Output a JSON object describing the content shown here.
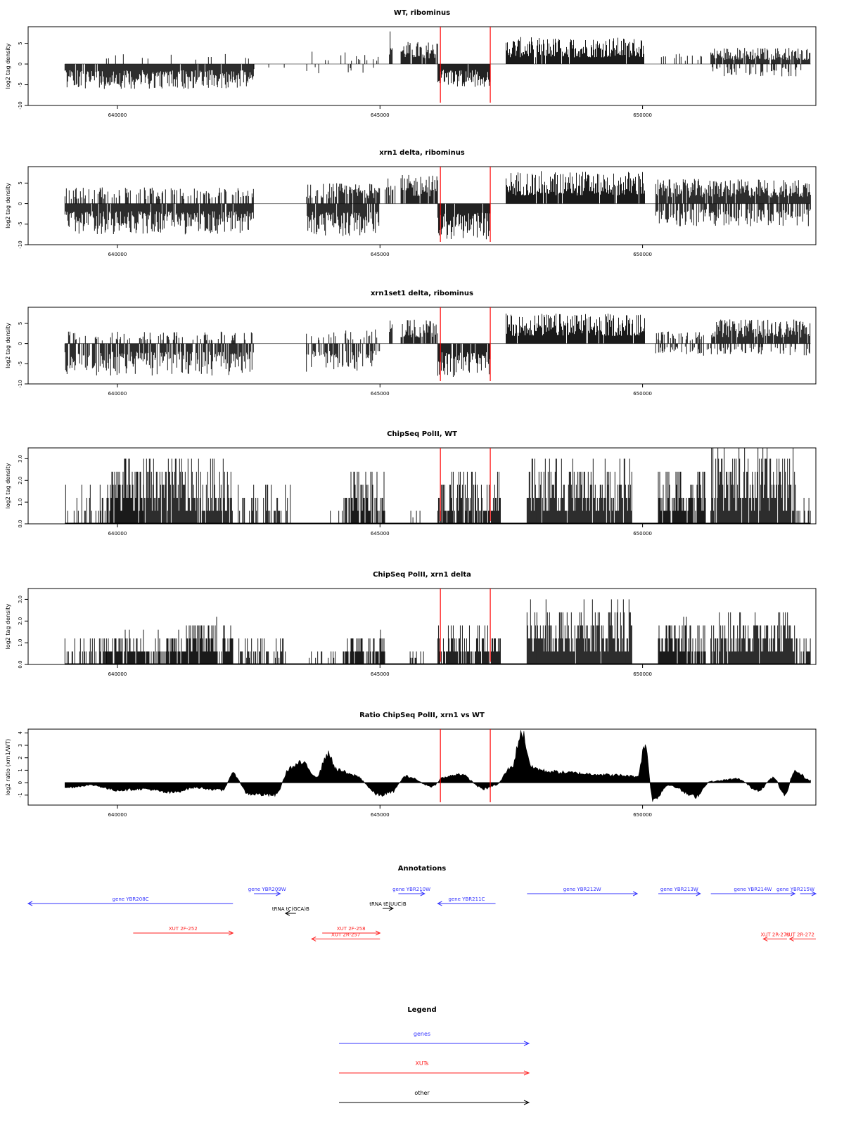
{
  "chart_data": [
    {
      "type": "bar",
      "title": "WT, ribominus",
      "ylabel": "log2 tag density",
      "xlabel": "",
      "xlim": [
        638300,
        653300
      ],
      "ylim": [
        -10,
        9
      ],
      "x_ticks": [
        640000,
        645000,
        650000
      ],
      "y_ticks": [
        -10,
        -5,
        0,
        5
      ],
      "grid": false,
      "markers": [
        646150,
        647100
      ],
      "series": [
        {
          "strand": "plus",
          "segments": [
            {
              "x0": 639000,
              "x1": 642600,
              "ymax": 3.5,
              "density": 0.08
            },
            {
              "x0": 643600,
              "x1": 645000,
              "ymax": 3,
              "density": 0.1
            },
            {
              "x0": 645180,
              "x1": 645240,
              "ymax": 8.5,
              "density": 1
            },
            {
              "x0": 645400,
              "x1": 646100,
              "ymax": 5.5,
              "density": 0.9
            },
            {
              "x0": 647400,
              "x1": 650050,
              "ymax": 6.5,
              "density": 0.95
            },
            {
              "x0": 650250,
              "x1": 651200,
              "ymax": 3,
              "density": 0.2
            },
            {
              "x0": 651300,
              "x1": 653200,
              "ymax": 4,
              "density": 0.9
            }
          ]
        },
        {
          "strand": "minus",
          "segments": [
            {
              "x0": 639000,
              "x1": 642600,
              "ymax": 6,
              "density": 0.95
            },
            {
              "x0": 642600,
              "x1": 645000,
              "ymax": 3,
              "density": 0.08
            },
            {
              "x0": 646100,
              "x1": 647100,
              "ymax": 5.5,
              "density": 0.95
            },
            {
              "x0": 651300,
              "x1": 653200,
              "ymax": 3,
              "density": 0.3
            }
          ]
        }
      ]
    },
    {
      "type": "bar",
      "title": "xrn1 delta, ribominus",
      "ylabel": "log2 tag density",
      "xlabel": "",
      "xlim": [
        638300,
        653300
      ],
      "ylim": [
        -10,
        9
      ],
      "x_ticks": [
        640000,
        645000,
        650000
      ],
      "y_ticks": [
        -10,
        -5,
        0,
        5
      ],
      "grid": false,
      "markers": [
        646150,
        647100
      ],
      "series": [
        {
          "strand": "plus",
          "segments": [
            {
              "x0": 639000,
              "x1": 642600,
              "ymax": 4,
              "density": 0.4
            },
            {
              "x0": 643600,
              "x1": 645000,
              "ymax": 5,
              "density": 0.7
            },
            {
              "x0": 645100,
              "x1": 645300,
              "ymax": 7,
              "density": 0.5
            },
            {
              "x0": 645400,
              "x1": 646100,
              "ymax": 7,
              "density": 0.9
            },
            {
              "x0": 647400,
              "x1": 650050,
              "ymax": 8,
              "density": 0.95
            },
            {
              "x0": 650250,
              "x1": 653200,
              "ymax": 6,
              "density": 0.95
            }
          ]
        },
        {
          "strand": "minus",
          "segments": [
            {
              "x0": 639000,
              "x1": 642600,
              "ymax": 7.5,
              "density": 0.95
            },
            {
              "x0": 643600,
              "x1": 645000,
              "ymax": 8,
              "density": 0.9
            },
            {
              "x0": 646100,
              "x1": 647100,
              "ymax": 9,
              "density": 0.95
            },
            {
              "x0": 650250,
              "x1": 653200,
              "ymax": 5.5,
              "density": 0.6
            }
          ]
        }
      ]
    },
    {
      "type": "bar",
      "title": "xrn1set1 delta, ribominus",
      "ylabel": "log2 tag density",
      "xlabel": "",
      "xlim": [
        638300,
        653300
      ],
      "ylim": [
        -10,
        9
      ],
      "x_ticks": [
        640000,
        645000,
        650000
      ],
      "y_ticks": [
        -10,
        -5,
        0,
        5
      ],
      "grid": false,
      "markers": [
        646150,
        647100
      ],
      "series": [
        {
          "strand": "plus",
          "segments": [
            {
              "x0": 639000,
              "x1": 642600,
              "ymax": 3,
              "density": 0.25
            },
            {
              "x0": 643600,
              "x1": 645000,
              "ymax": 3.5,
              "density": 0.25
            },
            {
              "x0": 645180,
              "x1": 645240,
              "ymax": 8,
              "density": 1
            },
            {
              "x0": 645400,
              "x1": 646100,
              "ymax": 6,
              "density": 0.8
            },
            {
              "x0": 647400,
              "x1": 650050,
              "ymax": 7.5,
              "density": 0.95
            },
            {
              "x0": 650250,
              "x1": 651200,
              "ymax": 3,
              "density": 0.3
            },
            {
              "x0": 651300,
              "x1": 653200,
              "ymax": 6,
              "density": 0.9
            }
          ]
        },
        {
          "strand": "minus",
          "segments": [
            {
              "x0": 639000,
              "x1": 642600,
              "ymax": 8,
              "density": 0.7
            },
            {
              "x0": 643600,
              "x1": 645000,
              "ymax": 7,
              "density": 0.6
            },
            {
              "x0": 646100,
              "x1": 647100,
              "ymax": 8.5,
              "density": 0.95
            },
            {
              "x0": 650250,
              "x1": 653200,
              "ymax": 3,
              "density": 0.4
            }
          ]
        }
      ]
    },
    {
      "type": "bar",
      "title": "ChipSeq PolII, WT",
      "ylabel": "log2 tag density",
      "xlabel": "",
      "xlim": [
        638300,
        653300
      ],
      "ylim": [
        0,
        3.5
      ],
      "x_ticks": [
        640000,
        645000,
        650000
      ],
      "y_ticks": [
        0.0,
        1.0,
        2.0,
        3.0
      ],
      "grid": false,
      "markers": [
        646150,
        647100
      ],
      "series": [
        {
          "strand": "plus",
          "segments": [
            {
              "x0": 639000,
              "x1": 639800,
              "ymax": 2,
              "density": 0.4
            },
            {
              "x0": 639800,
              "x1": 640500,
              "ymax": 3,
              "density": 0.9
            },
            {
              "x0": 640500,
              "x1": 642200,
              "ymax": 3,
              "density": 0.9
            },
            {
              "x0": 642300,
              "x1": 643300,
              "ymax": 2,
              "density": 0.5
            },
            {
              "x0": 643800,
              "x1": 644300,
              "ymax": 1,
              "density": 0.1
            },
            {
              "x0": 644300,
              "x1": 645100,
              "ymax": 2.6,
              "density": 0.7
            },
            {
              "x0": 645400,
              "x1": 645800,
              "ymax": 1,
              "density": 0.2
            },
            {
              "x0": 646100,
              "x1": 647300,
              "ymax": 2.6,
              "density": 0.85
            },
            {
              "x0": 647800,
              "x1": 649800,
              "ymax": 3,
              "density": 0.95
            },
            {
              "x0": 650300,
              "x1": 651200,
              "ymax": 3,
              "density": 0.9
            },
            {
              "x0": 651300,
              "x1": 652900,
              "ymax": 3.5,
              "density": 0.95
            },
            {
              "x0": 652900,
              "x1": 653200,
              "ymax": 2,
              "density": 0.3
            }
          ]
        }
      ]
    },
    {
      "type": "bar",
      "title": "ChipSeq PolII, xrn1 delta",
      "ylabel": "log2 tag density",
      "xlabel": "",
      "xlim": [
        638300,
        653300
      ],
      "ylim": [
        0,
        3.5
      ],
      "x_ticks": [
        640000,
        645000,
        650000
      ],
      "y_ticks": [
        0.0,
        1.0,
        2.0,
        3.0
      ],
      "grid": false,
      "markers": [
        646150,
        647100
      ],
      "series": [
        {
          "strand": "plus",
          "segments": [
            {
              "x0": 639000,
              "x1": 639800,
              "ymax": 1.5,
              "density": 0.5
            },
            {
              "x0": 639800,
              "x1": 641300,
              "ymax": 1.6,
              "density": 0.8
            },
            {
              "x0": 641300,
              "x1": 642200,
              "ymax": 2.2,
              "density": 0.9
            },
            {
              "x0": 642300,
              "x1": 643200,
              "ymax": 1.4,
              "density": 0.5
            },
            {
              "x0": 643600,
              "x1": 644200,
              "ymax": 0.8,
              "density": 0.15
            },
            {
              "x0": 644300,
              "x1": 645100,
              "ymax": 1.6,
              "density": 0.75
            },
            {
              "x0": 645400,
              "x1": 645900,
              "ymax": 0.8,
              "density": 0.3
            },
            {
              "x0": 646100,
              "x1": 647300,
              "ymax": 2,
              "density": 0.85
            },
            {
              "x0": 647800,
              "x1": 649800,
              "ymax": 3,
              "density": 0.98
            },
            {
              "x0": 650300,
              "x1": 651200,
              "ymax": 2.2,
              "density": 0.9
            },
            {
              "x0": 651300,
              "x1": 652900,
              "ymax": 2.4,
              "density": 0.95
            },
            {
              "x0": 652900,
              "x1": 653200,
              "ymax": 1.5,
              "density": 0.4
            }
          ]
        }
      ]
    },
    {
      "type": "area",
      "title": "Ratio ChipSeq PolII, xrn1 vs WT",
      "ylabel": "log2 ratio (xrn1/WT)",
      "xlabel": "",
      "xlim": [
        638300,
        653300
      ],
      "ylim": [
        -1.8,
        4.3
      ],
      "x_ticks": [
        640000,
        645000,
        650000
      ],
      "y_ticks": [
        -1,
        0,
        1,
        2,
        3,
        4
      ],
      "grid": false,
      "markers": [
        646150,
        647100
      ],
      "x": [
        639000,
        639500,
        640000,
        640500,
        641000,
        641500,
        642000,
        642200,
        642500,
        643000,
        643300,
        643500,
        643800,
        644000,
        644200,
        644500,
        645000,
        645200,
        645500,
        646000,
        646200,
        646500,
        647000,
        647200,
        647500,
        647700,
        647900,
        648200,
        648600,
        649000,
        649500,
        649900,
        650050,
        650200,
        650500,
        651000,
        651300,
        651800,
        652200,
        652500,
        652700,
        652900,
        653200
      ],
      "y": [
        -0.4,
        -0.2,
        -0.6,
        -0.5,
        -0.8,
        -0.4,
        -0.6,
        0.7,
        -0.9,
        -1.0,
        1.2,
        1.6,
        0.5,
        2.3,
        1.0,
        0.6,
        -1.0,
        -0.8,
        0.5,
        -0.3,
        0.4,
        0.7,
        -0.5,
        -0.2,
        1.2,
        4.0,
        1.2,
        0.9,
        0.8,
        0.7,
        0.6,
        0.5,
        3.0,
        -1.4,
        -0.2,
        -1.1,
        0.1,
        0.3,
        -0.6,
        0.4,
        -1.0,
        0.9,
        0.2
      ]
    }
  ],
  "annotations": {
    "title": "Annotations",
    "items": [
      {
        "label": "gene YBR208C",
        "x0": 638300,
        "x1": 642200,
        "dir": "left",
        "kind": "gene",
        "row": 1
      },
      {
        "label": "gene YBR209W",
        "x0": 642600,
        "x1": 643100,
        "dir": "right",
        "kind": "gene",
        "row": 0
      },
      {
        "label": "tRNA tC(GCA)B",
        "x0": 643200,
        "x1": 643400,
        "dir": "left",
        "kind": "other",
        "row": 2
      },
      {
        "label": "gene YBR210W",
        "x0": 645350,
        "x1": 645850,
        "dir": "right",
        "kind": "gene",
        "row": 0
      },
      {
        "label": "tRNA tE(UUC)B",
        "x0": 645050,
        "x1": 645250,
        "dir": "right",
        "kind": "other",
        "row": 1.5
      },
      {
        "label": "gene YBR211C",
        "x0": 646100,
        "x1": 647200,
        "dir": "left",
        "kind": "gene",
        "row": 1
      },
      {
        "label": "gene YBR212W",
        "x0": 647800,
        "x1": 649900,
        "dir": "right",
        "kind": "gene",
        "row": 0
      },
      {
        "label": "gene YBR213W",
        "x0": 650300,
        "x1": 651100,
        "dir": "right",
        "kind": "gene",
        "row": 0
      },
      {
        "label": "gene YBR214W",
        "x0": 651300,
        "x1": 652900,
        "dir": "right",
        "kind": "gene",
        "row": 0
      },
      {
        "label": "gene YBR215W",
        "x0": 653000,
        "x1": 654000,
        "dir": "right",
        "kind": "gene",
        "row": 0
      },
      {
        "label": "XUT 2F-252",
        "x0": 640300,
        "x1": 642200,
        "dir": "right",
        "kind": "xut",
        "row": 4
      },
      {
        "label": "XUT 2F-258",
        "x0": 643900,
        "x1": 645000,
        "dir": "right",
        "kind": "xut",
        "row": 4
      },
      {
        "label": "XUT 2R-257",
        "x0": 643700,
        "x1": 645000,
        "dir": "left",
        "kind": "xut",
        "row": 4.6
      },
      {
        "label": "XUT 2R-271",
        "x0": 652300,
        "x1": 652750,
        "dir": "left",
        "kind": "xut",
        "row": 4.6
      },
      {
        "label": "XUT 2R-272",
        "x0": 652800,
        "x1": 653350,
        "dir": "left",
        "kind": "xut",
        "row": 4.6
      }
    ]
  },
  "legend": {
    "title": "Legend",
    "items": [
      {
        "label": "genes",
        "color": "#3333ff"
      },
      {
        "label": "XUTs",
        "color": "#ff2222"
      },
      {
        "label": "other",
        "color": "#000000"
      }
    ]
  },
  "colors": {
    "marker": "#ff0000",
    "gene": "#3333ff",
    "xut": "#ff2222",
    "other": "#000000",
    "bars": "#000000"
  }
}
